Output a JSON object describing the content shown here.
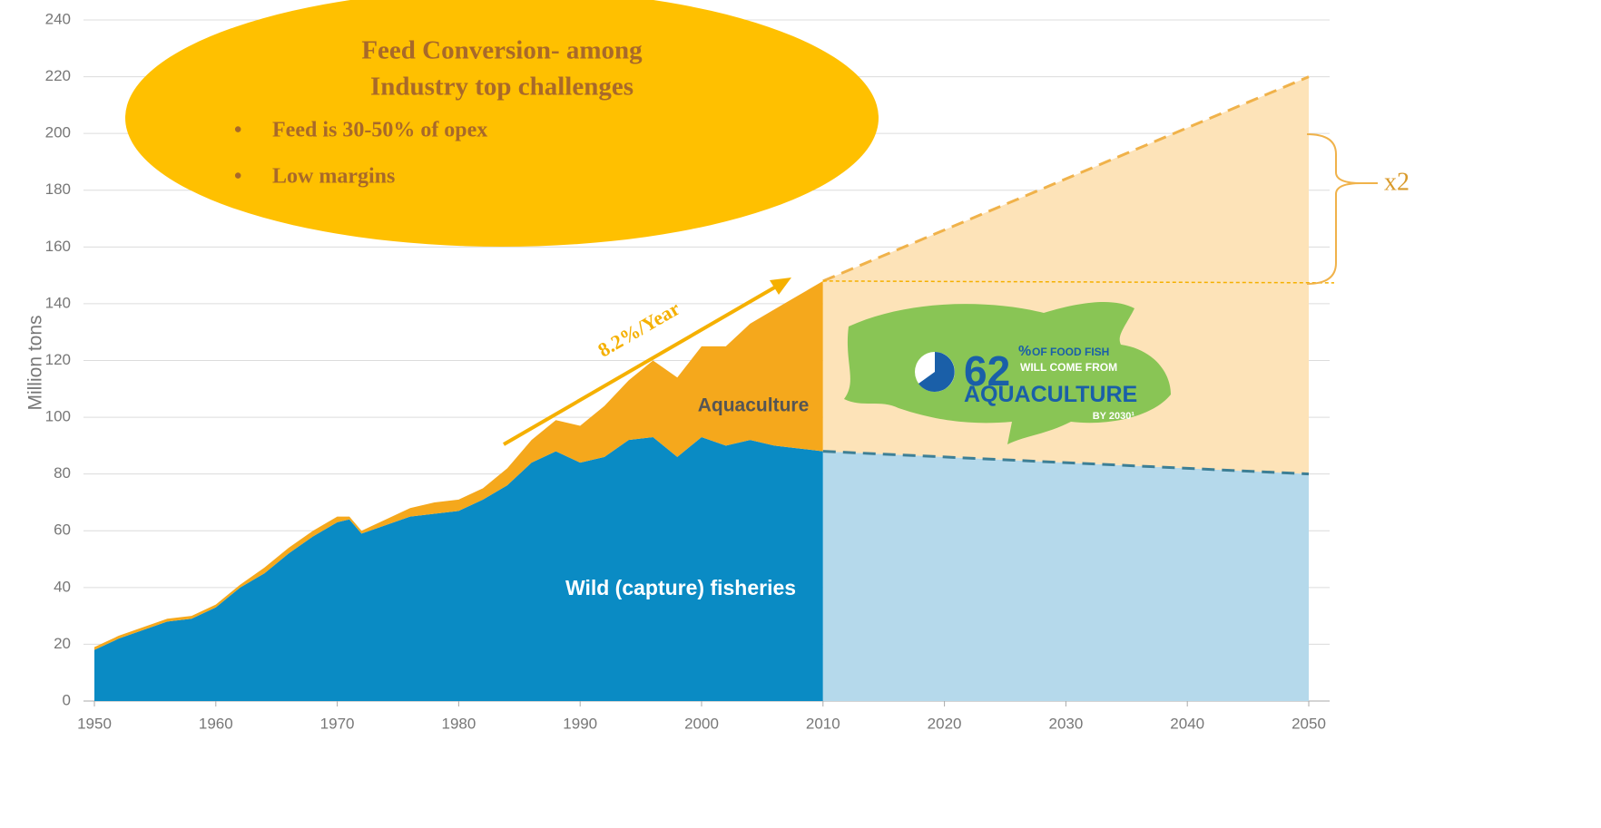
{
  "chart_data": {
    "type": "stacked_area",
    "y_label": "Million tons",
    "x": [
      1950,
      1952,
      1954,
      1956,
      1958,
      1960,
      1962,
      1964,
      1966,
      1968,
      1970,
      1971,
      1972,
      1974,
      1976,
      1978,
      1980,
      1982,
      1984,
      1986,
      1988,
      1990,
      1992,
      1994,
      1996,
      1998,
      2000,
      2002,
      2004,
      2006,
      2008,
      2010
    ],
    "series": [
      {
        "name": "Wild (capture) fisheries",
        "color": "#0a8bc4",
        "values": [
          18,
          22,
          25,
          28,
          29,
          33,
          40,
          45,
          52,
          58,
          63,
          64,
          59,
          62,
          65,
          66,
          67,
          71,
          76,
          84,
          88,
          84,
          86,
          92,
          93,
          86,
          93,
          90,
          92,
          90,
          89,
          88
        ]
      },
      {
        "name": "Aquaculture",
        "color": "#f5a81c",
        "values": [
          1,
          1,
          1,
          1,
          1,
          1,
          1,
          2,
          2,
          2,
          2,
          1,
          1,
          2,
          3,
          4,
          4,
          4,
          6,
          8,
          11,
          13,
          18,
          21,
          27,
          28,
          32,
          35,
          41,
          48,
          54,
          60
        ]
      }
    ],
    "forecast": {
      "x": [
        2010,
        2050
      ],
      "colors": [
        "#b5d9eb",
        "#fde3b8"
      ],
      "line_colors": [
        "#3d7f95",
        "#f0b24a"
      ],
      "series": [
        {
          "values": [
            88,
            80
          ]
        },
        {
          "values": [
            60,
            140
          ]
        }
      ]
    },
    "xlim": [
      1950,
      2050
    ],
    "xticks": [
      1950,
      1960,
      1970,
      1980,
      1990,
      2000,
      2010,
      2020,
      2030,
      2040,
      2050
    ],
    "ylim": [
      0,
      240
    ],
    "yticks": [
      0,
      20,
      40,
      60,
      80,
      100,
      120,
      140,
      160,
      180,
      200,
      220,
      240
    ],
    "grid": true,
    "annotations": {
      "callout_title": [
        "Feed Conversion- among",
        "Industry top challenges"
      ],
      "callout_bullets": [
        "Feed is 30-50% of opex",
        "Low margins"
      ],
      "growth": "8.2%/Year",
      "multiplier": "x2",
      "fish": {
        "number": "62",
        "percent": "%",
        "line1": "OF FOOD FISH",
        "line2": "WILL COME FROM",
        "line3": "AQUACULTURE",
        "line4": "BY 2030¹"
      }
    }
  }
}
